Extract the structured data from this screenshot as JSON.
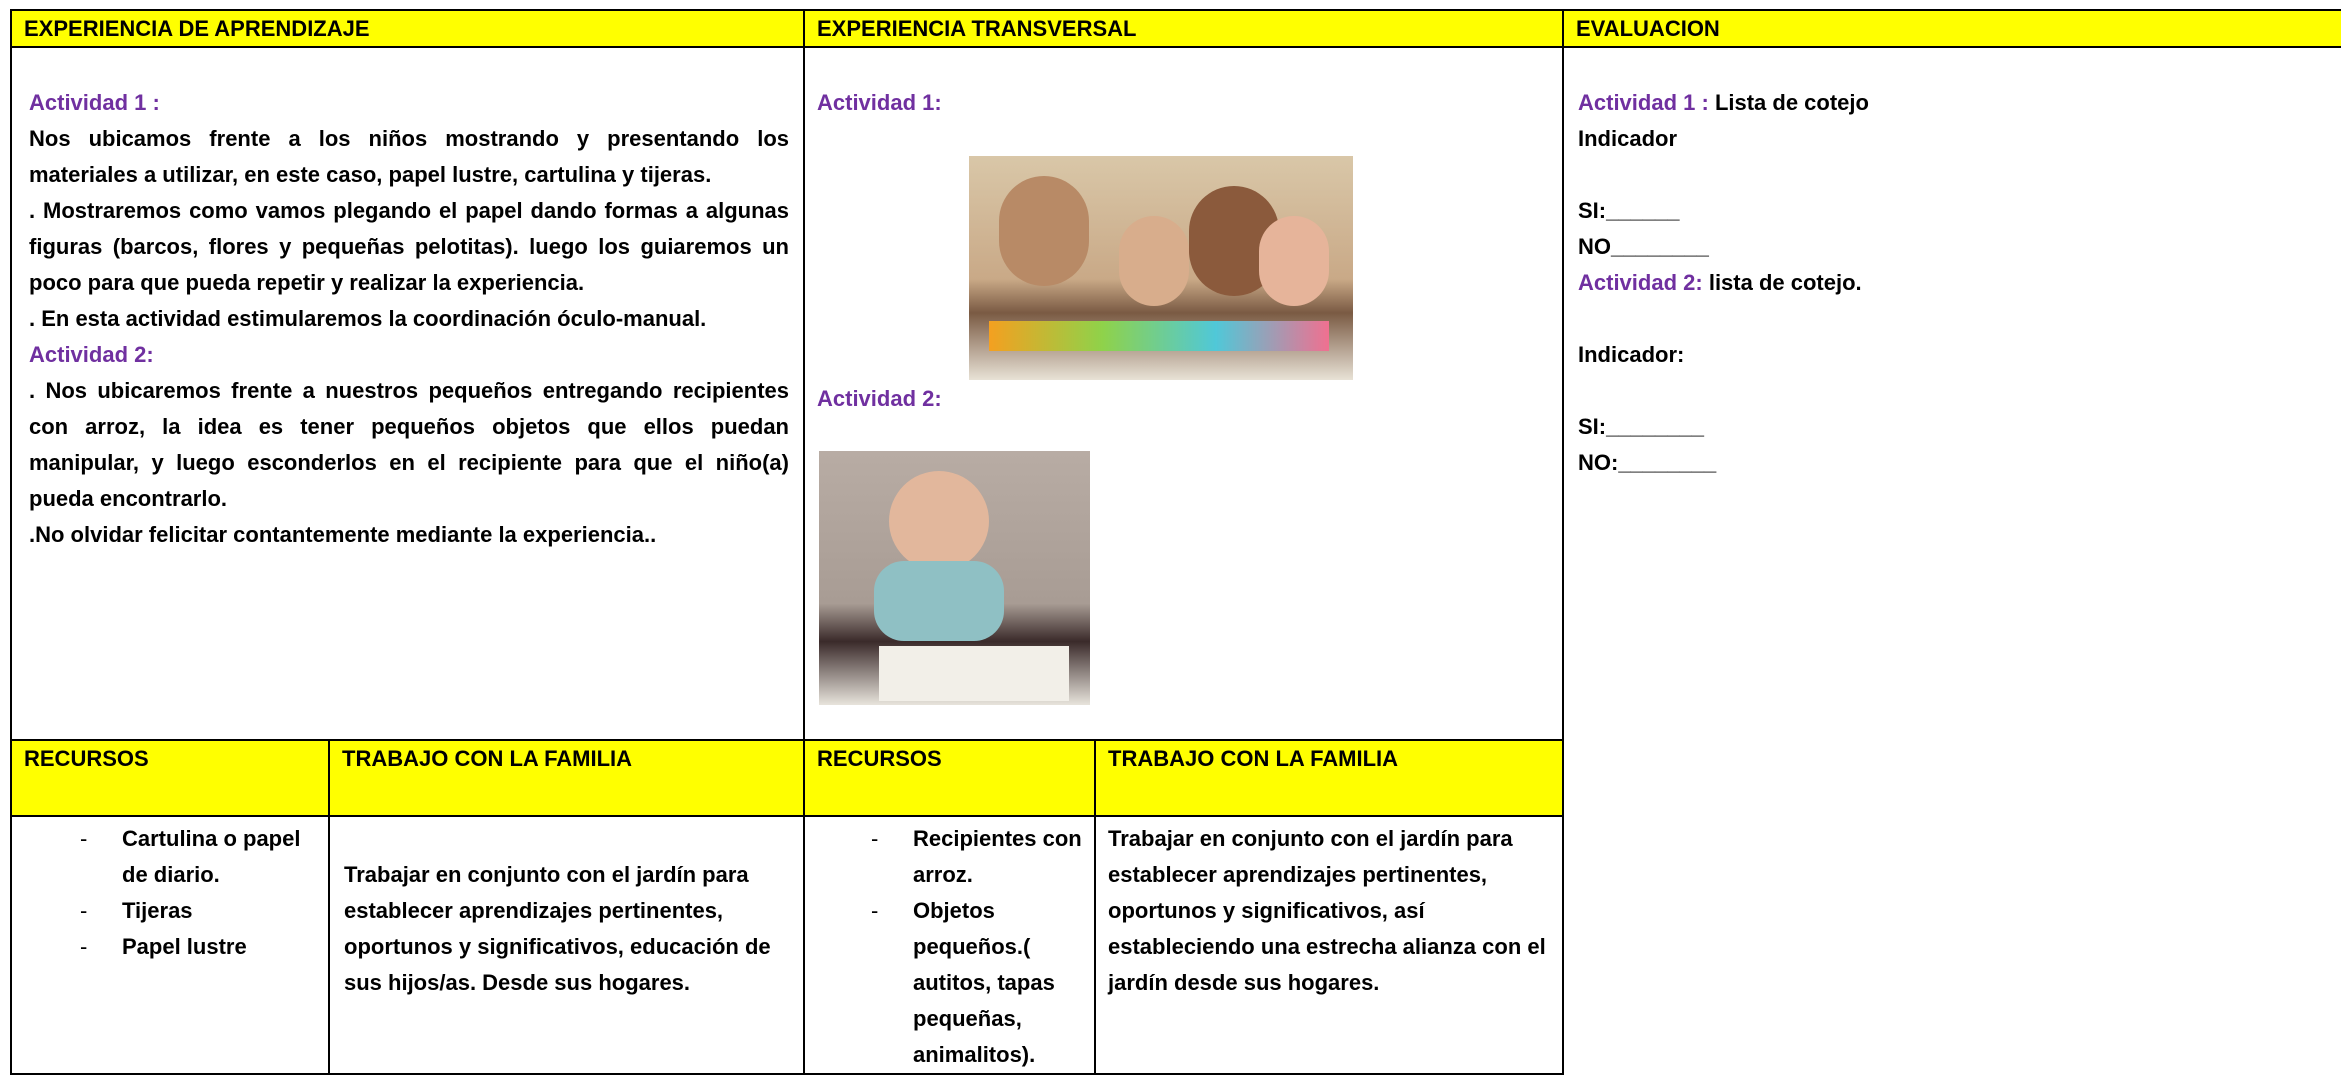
{
  "header": {
    "aprendizaje": "EXPERIENCIA DE APRENDIZAJE",
    "transversal": "EXPERIENCIA TRANSVERSAL",
    "evaluacion": "EVALUACION"
  },
  "aprendizaje": {
    "actividad_1_label": "Actividad 1 :",
    "actividad_1_paragraphs": [
      "Nos ubicamos frente a los niños mostrando y presentando los materiales a utilizar, en este caso, papel lustre, cartulina y tijeras.",
      ". Mostraremos como vamos plegando el papel dando formas a algunas figuras (barcos, flores y pequeñas pelotitas). luego los guiaremos un poco para que pueda repetir y realizar la experiencia.",
      ". En esta actividad estimularemos la coordinación óculo-manual."
    ],
    "actividad_2_label": "Actividad 2:",
    "actividad_2_paragraphs": [
      ". Nos ubicaremos frente a nuestros pequeños entregando recipientes con arroz, la idea es tener  pequeños objetos que ellos puedan manipular, y luego esconderlos en el recipiente para que el niño(a) pueda encontrarlo.",
      ".No olvidar felicitar contantemente mediante la experiencia.."
    ]
  },
  "transversal": {
    "actividad_1_label": "Actividad 1:",
    "actividad_2_label": "Actividad 2:"
  },
  "evaluacion": {
    "actividad_1_label": "Actividad 1 :",
    "actividad_1_text": "Lista de cotejo",
    "indicador_1": "Indicador",
    "si_1": "SI:______",
    "no_1": "NO________",
    "actividad_2_label": "Actividad 2:",
    "actividad_2_text": "lista de cotejo.",
    "indicador_2": "Indicador:",
    "si_2": "SI:________",
    "no_2": "NO:________"
  },
  "bottom_left": {
    "recursos_header": "RECURSOS",
    "familia_header": "TRABAJO CON LA FAMILIA",
    "recursos": [
      "Cartulina o papel de diario.",
      "Tijeras",
      "Papel lustre"
    ],
    "familia": "Trabajar en conjunto con el jardín para establecer aprendizajes pertinentes, oportunos y significativos, educación de sus hijos/as. Desde sus hogares."
  },
  "bottom_right": {
    "recursos_header": "RECURSOS",
    "familia_header": "TRABAJO CON LA FAMILIA",
    "recursos": [
      "Recipientes con arroz.",
      "Objetos pequeños.( autitos, tapas pequeñas, animalitos)."
    ],
    "familia": "Trabajar en conjunto con el jardín para establecer aprendizajes pertinentes, oportunos y significativos, así estableciendo una estrecha alianza con el jardín desde sus hogares."
  }
}
